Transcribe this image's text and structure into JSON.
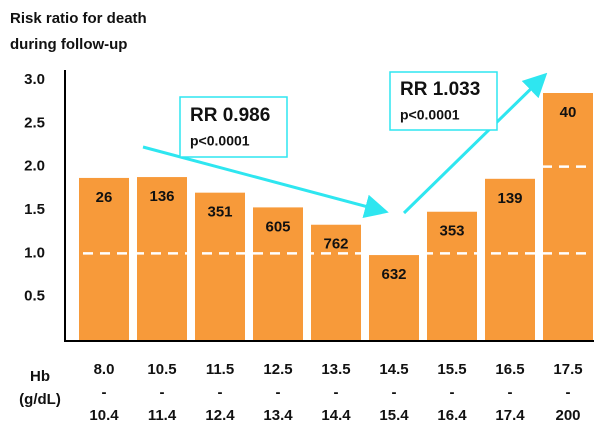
{
  "chart_data": {
    "type": "bar",
    "title": [
      "Risk ratio for death",
      "during follow-up"
    ],
    "x_label": [
      "Hb",
      "(g/dL)"
    ],
    "categories": [
      [
        "8.0",
        "-",
        "10.4"
      ],
      [
        "10.5",
        "-",
        "11.4"
      ],
      [
        "11.5",
        "-",
        "12.4"
      ],
      [
        "12.5",
        "-",
        "13.4"
      ],
      [
        "13.5",
        "-",
        "14.4"
      ],
      [
        "14.5",
        "-",
        "15.4"
      ],
      [
        "15.5",
        "-",
        "16.4"
      ],
      [
        "16.5",
        "-",
        "17.4"
      ],
      [
        "17.5",
        "-",
        "200"
      ]
    ],
    "values": [
      1.87,
      1.88,
      1.7,
      1.53,
      1.33,
      0.98,
      1.48,
      1.86,
      2.85
    ],
    "counts": [
      "26",
      "136",
      "351",
      "605",
      "762",
      "632",
      "353",
      "139",
      "40"
    ],
    "color": "#f79a3a",
    "ylim": [
      0,
      3
    ],
    "yticks": [
      0.5,
      {
        "value": 1,
        "label": "1.0"
      },
      1.5,
      {
        "value": 2,
        "label": "2.0"
      },
      2.5,
      {
        "value": 3,
        "label": "3.0"
      }
    ],
    "reference_lines": [
      1,
      2
    ],
    "annotations": [
      {
        "rr": "RR 0.986",
        "p": "p<0.0001"
      },
      {
        "rr": "RR 1.033",
        "p": "p<0.0001"
      }
    ]
  }
}
